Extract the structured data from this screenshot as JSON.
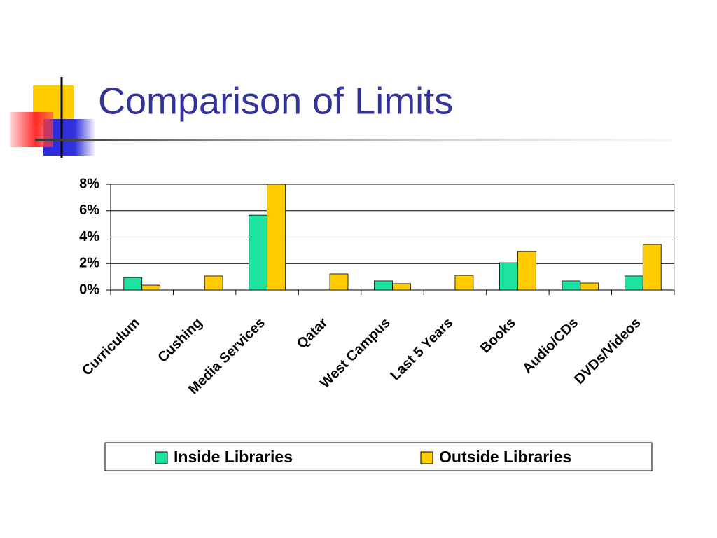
{
  "chart_data": {
    "type": "bar",
    "title": "Comparison of Limits",
    "categories": [
      "Curriculum",
      "Cushing",
      "Media Services",
      "Qatar",
      "West Campus",
      "Last 5 Years",
      "Books",
      "Audio/CDs",
      "DVDs/Videos"
    ],
    "series": [
      {
        "name": "Inside Libraries",
        "color": "#1de2a0",
        "values": [
          0.95,
          0,
          5.66,
          0,
          0.69,
          0,
          2.06,
          0.69,
          1.06
        ]
      },
      {
        "name": "Outside Libraries",
        "color": "#ffcc00",
        "values": [
          0.37,
          1.06,
          8.0,
          1.22,
          0.48,
          1.11,
          2.91,
          0.53,
          3.44
        ]
      }
    ],
    "ylim": [
      0,
      8
    ],
    "yticks": [
      {
        "value": 0,
        "label": "0%"
      },
      {
        "value": 2,
        "label": "2%"
      },
      {
        "value": 4,
        "label": "4%"
      },
      {
        "value": 6,
        "label": "6%"
      },
      {
        "value": 8,
        "label": "8%"
      }
    ],
    "grid": true,
    "legend": "bottom"
  }
}
